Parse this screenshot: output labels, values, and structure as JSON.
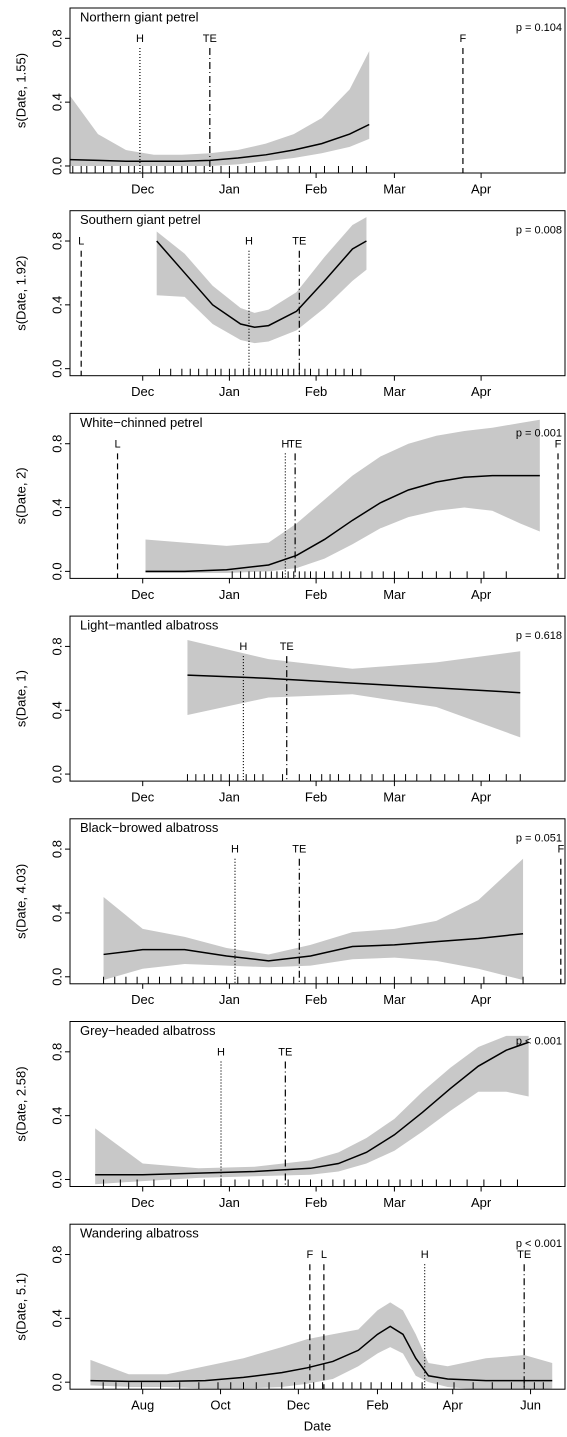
{
  "chart_data": [
    {
      "type": "line",
      "title": "Northern giant petrel",
      "ylabel": "s(Date, 1.55)",
      "annotation": "p = 0.104",
      "color": "#000000",
      "band_color": "#c8c8c8",
      "xlim": [
        4,
        181
      ],
      "ylim": [
        -0.044,
        0.99
      ],
      "xticks": [
        {
          "value": 30,
          "label": "Dec"
        },
        {
          "value": 61,
          "label": "Jan"
        },
        {
          "value": 92,
          "label": "Feb"
        },
        {
          "value": 120,
          "label": "Mar"
        },
        {
          "value": 151,
          "label": "Apr"
        }
      ],
      "yticks": [
        {
          "value": 0,
          "label": "0.0"
        },
        0.4,
        0.8
      ],
      "x": [
        4,
        14,
        24,
        34,
        44,
        54,
        64,
        74,
        84,
        94,
        104,
        111
      ],
      "values": [
        0.04,
        0.035,
        0.03,
        0.03,
        0.03,
        0.035,
        0.05,
        0.07,
        0.1,
        0.14,
        0.2,
        0.26
      ],
      "upper": [
        0.44,
        0.2,
        0.1,
        0.07,
        0.07,
        0.08,
        0.1,
        0.14,
        0.2,
        0.3,
        0.48,
        0.72
      ],
      "lower": [
        0,
        0,
        0,
        0,
        0,
        0,
        0.01,
        0.03,
        0.05,
        0.08,
        0.12,
        0.17
      ],
      "events": [
        {
          "label": "H",
          "x": 29,
          "style": "dotted"
        },
        {
          "label": "TE",
          "x": 54,
          "style": "dashdot"
        },
        {
          "label": "F",
          "x": 144.5,
          "style": "dashed"
        }
      ],
      "rug": [
        5,
        8,
        10,
        13,
        16,
        19,
        22,
        25,
        27,
        30,
        33,
        35,
        38,
        41,
        44,
        46,
        49,
        52,
        55,
        58,
        61,
        64,
        67,
        70,
        74,
        78,
        82,
        86,
        90,
        95,
        100,
        105,
        110
      ]
    },
    {
      "type": "line",
      "title": "Southern giant petrel",
      "ylabel": "s(Date, 1.92)",
      "annotation": "p = 0.008",
      "color": "#000000",
      "band_color": "#c8c8c8",
      "xlim": [
        4,
        181
      ],
      "ylim": [
        -0.044,
        0.99
      ],
      "xticks": [
        {
          "value": 30,
          "label": "Dec"
        },
        {
          "value": 61,
          "label": "Jan"
        },
        {
          "value": 92,
          "label": "Feb"
        },
        {
          "value": 120,
          "label": "Mar"
        },
        {
          "value": 151,
          "label": "Apr"
        }
      ],
      "yticks": [
        {
          "value": 0,
          "label": "0.0"
        },
        0.4,
        0.8
      ],
      "x": [
        35,
        45,
        55,
        65,
        70,
        75,
        85,
        95,
        105,
        110
      ],
      "values": [
        0.8,
        0.6,
        0.4,
        0.28,
        0.26,
        0.27,
        0.36,
        0.55,
        0.75,
        0.8
      ],
      "upper": [
        0.86,
        0.72,
        0.52,
        0.38,
        0.35,
        0.37,
        0.48,
        0.7,
        0.9,
        0.95
      ],
      "lower": [
        0.46,
        0.45,
        0.28,
        0.18,
        0.16,
        0.17,
        0.24,
        0.38,
        0.55,
        0.62
      ],
      "events": [
        {
          "label": "L",
          "x": 8,
          "style": "dashed"
        },
        {
          "label": "H",
          "x": 68,
          "style": "dotted"
        },
        {
          "label": "TE",
          "x": 86,
          "style": "dashdot"
        }
      ],
      "rug": [
        36,
        40,
        44,
        47,
        50,
        53,
        56,
        58,
        61,
        63,
        66,
        68,
        70,
        72,
        74,
        76,
        78,
        80,
        82,
        84,
        86,
        88,
        90,
        93,
        96,
        99,
        102,
        105,
        108
      ]
    },
    {
      "type": "line",
      "title": "White−chinned petrel",
      "ylabel": "s(Date, 2)",
      "annotation": "p = 0.001",
      "color": "#000000",
      "band_color": "#c8c8c8",
      "xlim": [
        4,
        181
      ],
      "ylim": [
        -0.044,
        0.99
      ],
      "xticks": [
        {
          "value": 30,
          "label": "Dec"
        },
        {
          "value": 61,
          "label": "Jan"
        },
        {
          "value": 92,
          "label": "Feb"
        },
        {
          "value": 120,
          "label": "Mar"
        },
        {
          "value": 151,
          "label": "Apr"
        }
      ],
      "yticks": [
        {
          "value": 0,
          "label": "0.0"
        },
        0.4,
        0.8
      ],
      "x": [
        31,
        45,
        60,
        75,
        85,
        95,
        105,
        115,
        125,
        135,
        145,
        155,
        165,
        172
      ],
      "values": [
        0,
        0,
        0.01,
        0.04,
        0.1,
        0.2,
        0.32,
        0.43,
        0.51,
        0.56,
        0.59,
        0.6,
        0.6,
        0.6
      ],
      "upper": [
        0.2,
        0.18,
        0.16,
        0.18,
        0.3,
        0.45,
        0.6,
        0.72,
        0.8,
        0.85,
        0.88,
        0.9,
        0.93,
        0.95
      ],
      "lower": [
        -0.01,
        -0.01,
        -0.01,
        0,
        0.02,
        0.08,
        0.17,
        0.27,
        0.34,
        0.38,
        0.4,
        0.38,
        0.3,
        0.25
      ],
      "events": [
        {
          "label": "L",
          "x": 21,
          "style": "dashed"
        },
        {
          "label": "H",
          "x": 81,
          "style": "dotted"
        },
        {
          "label": "TE",
          "x": 84.5,
          "style": "dashdot"
        },
        {
          "label": "F",
          "x": 178.5,
          "style": "dashed"
        }
      ],
      "rug": [
        62,
        65,
        68,
        70,
        72,
        74,
        76,
        78,
        80,
        82,
        84,
        86,
        88,
        90,
        92,
        95,
        98,
        101,
        104,
        108,
        112,
        116,
        120,
        125,
        130,
        135,
        140,
        146,
        152,
        160
      ]
    },
    {
      "type": "line",
      "title": "Light−mantled albatross",
      "ylabel": "s(Date, 1)",
      "annotation": "p = 0.618",
      "color": "#000000",
      "band_color": "#c8c8c8",
      "xlim": [
        4,
        181
      ],
      "ylim": [
        -0.044,
        0.99
      ],
      "xticks": [
        {
          "value": 30,
          "label": "Dec"
        },
        {
          "value": 61,
          "label": "Jan"
        },
        {
          "value": 92,
          "label": "Feb"
        },
        {
          "value": 120,
          "label": "Mar"
        },
        {
          "value": 151,
          "label": "Apr"
        }
      ],
      "yticks": [
        {
          "value": 0,
          "label": "0.0"
        },
        0.4,
        0.8
      ],
      "x": [
        46,
        75,
        105,
        135,
        165
      ],
      "values": [
        0.62,
        0.6,
        0.57,
        0.54,
        0.51
      ],
      "upper": [
        0.84,
        0.72,
        0.66,
        0.7,
        0.77
      ],
      "lower": [
        0.37,
        0.48,
        0.5,
        0.42,
        0.23
      ],
      "events": [
        {
          "label": "H",
          "x": 66,
          "style": "dotted"
        },
        {
          "label": "TE",
          "x": 81.5,
          "style": "dashdot"
        }
      ],
      "rug": [
        46,
        49,
        52,
        55,
        58,
        61,
        64,
        67,
        70,
        73,
        80,
        86,
        90,
        94,
        97,
        100,
        104,
        108,
        112,
        116,
        120,
        124,
        128,
        133,
        138,
        143,
        148,
        154,
        160,
        165
      ]
    },
    {
      "type": "line",
      "title": "Black−browed albatross",
      "ylabel": "s(Date, 4.03)",
      "annotation": "p = 0.051",
      "color": "#000000",
      "band_color": "#c8c8c8",
      "xlim": [
        4,
        181
      ],
      "ylim": [
        -0.044,
        0.99
      ],
      "xticks": [
        {
          "value": 30,
          "label": "Dec"
        },
        {
          "value": 61,
          "label": "Jan"
        },
        {
          "value": 92,
          "label": "Feb"
        },
        {
          "value": 120,
          "label": "Mar"
        },
        {
          "value": 151,
          "label": "Apr"
        }
      ],
      "yticks": [
        {
          "value": 0,
          "label": "0.0"
        },
        0.4,
        0.8
      ],
      "x": [
        16,
        30,
        45,
        60,
        75,
        90,
        105,
        120,
        135,
        150,
        166
      ],
      "values": [
        0.14,
        0.17,
        0.17,
        0.13,
        0.1,
        0.13,
        0.19,
        0.2,
        0.22,
        0.24,
        0.27
      ],
      "upper": [
        0.5,
        0.3,
        0.25,
        0.18,
        0.14,
        0.2,
        0.28,
        0.3,
        0.35,
        0.48,
        0.74
      ],
      "lower": [
        -0.02,
        0.05,
        0.08,
        0.07,
        0.06,
        0.07,
        0.11,
        0.12,
        0.1,
        0.05,
        -0.02
      ],
      "events": [
        {
          "label": "H",
          "x": 63,
          "style": "dotted"
        },
        {
          "label": "TE",
          "x": 86,
          "style": "dashdot"
        },
        {
          "label": "F",
          "x": 179.5,
          "style": "dashed"
        }
      ],
      "rug": [
        16,
        20,
        24,
        28,
        32,
        36,
        40,
        44,
        48,
        52,
        56,
        60,
        64,
        68,
        72,
        76,
        80,
        84,
        88,
        92,
        96,
        100,
        105,
        110,
        115,
        120,
        126,
        132,
        138,
        145,
        152,
        160,
        166
      ]
    },
    {
      "type": "line",
      "title": "Grey−headed albatross",
      "ylabel": "s(Date, 2.58)",
      "annotation": "p < 0.001",
      "color": "#000000",
      "band_color": "#c8c8c8",
      "xlim": [
        4,
        181
      ],
      "ylim": [
        -0.044,
        0.99
      ],
      "xticks": [
        {
          "value": 30,
          "label": "Dec"
        },
        {
          "value": 61,
          "label": "Jan"
        },
        {
          "value": 92,
          "label": "Feb"
        },
        {
          "value": 120,
          "label": "Mar"
        },
        {
          "value": 151,
          "label": "Apr"
        }
      ],
      "yticks": [
        {
          "value": 0,
          "label": "0.0"
        },
        0.4,
        0.8
      ],
      "x": [
        13,
        30,
        50,
        70,
        90,
        100,
        110,
        120,
        130,
        140,
        150,
        160,
        168
      ],
      "values": [
        0.03,
        0.03,
        0.04,
        0.05,
        0.07,
        0.1,
        0.17,
        0.28,
        0.42,
        0.57,
        0.71,
        0.81,
        0.86
      ],
      "upper": [
        0.32,
        0.1,
        0.07,
        0.08,
        0.12,
        0.17,
        0.26,
        0.38,
        0.55,
        0.7,
        0.83,
        0.9,
        0.9
      ],
      "lower": [
        -0.03,
        -0.01,
        0.01,
        0.02,
        0.03,
        0.05,
        0.1,
        0.18,
        0.3,
        0.43,
        0.55,
        0.55,
        0.52
      ],
      "events": [
        {
          "label": "H",
          "x": 58,
          "style": "dotted"
        },
        {
          "label": "TE",
          "x": 81,
          "style": "dashdot"
        }
      ],
      "rug": [
        16,
        22,
        28,
        34,
        40,
        46,
        52,
        58,
        63,
        68,
        73,
        78,
        82,
        86,
        90,
        94,
        98,
        102,
        106,
        110,
        114,
        118,
        122,
        126,
        130,
        135,
        140,
        146,
        152,
        158,
        164
      ]
    },
    {
      "type": "line",
      "title": "Wandering albatross",
      "ylabel": "s(Date, 5.1)",
      "annotation": "p < 0.001",
      "xlabel": "Date",
      "color": "#000000",
      "band_color": "#c8c8c8",
      "xlim": [
        -26,
        362
      ],
      "ylim": [
        -0.044,
        0.99
      ],
      "xticks": [
        {
          "value": 31,
          "label": "Aug"
        },
        {
          "value": 92,
          "label": "Oct"
        },
        {
          "value": 153,
          "label": "Dec"
        },
        {
          "value": 215,
          "label": "Feb"
        },
        {
          "value": 274,
          "label": "Apr"
        },
        {
          "value": 335,
          "label": "Jun"
        }
      ],
      "yticks": [
        {
          "value": 0,
          "label": "0.0"
        },
        0.4,
        0.8
      ],
      "x": [
        -10,
        20,
        50,
        80,
        110,
        140,
        160,
        180,
        200,
        215,
        225,
        235,
        245,
        255,
        270,
        300,
        330,
        352
      ],
      "values": [
        0.01,
        0.005,
        0.005,
        0.01,
        0.03,
        0.06,
        0.09,
        0.13,
        0.2,
        0.3,
        0.35,
        0.3,
        0.15,
        0.04,
        0.02,
        0.01,
        0.01,
        0.01
      ],
      "upper": [
        0.14,
        0.05,
        0.05,
        0.1,
        0.15,
        0.22,
        0.27,
        0.3,
        0.33,
        0.45,
        0.5,
        0.45,
        0.3,
        0.12,
        0.1,
        0.15,
        0.17,
        0.12
      ],
      "lower": [
        -0.02,
        -0.03,
        -0.03,
        -0.04,
        -0.04,
        -0.03,
        -0.01,
        0.02,
        0.1,
        0.18,
        0.22,
        0.18,
        0.04,
        0,
        -0.03,
        -0.05,
        -0.06,
        -0.04
      ],
      "events": [
        {
          "label": "F",
          "x": 162,
          "style": "dashed"
        },
        {
          "label": "L",
          "x": 173,
          "style": "dashed"
        },
        {
          "label": "H",
          "x": 252,
          "style": "dotted"
        },
        {
          "label": "TE",
          "x": 330,
          "style": "dashdot"
        }
      ],
      "rug": [
        0,
        10,
        20,
        30,
        45,
        60,
        75,
        90,
        100,
        110,
        120,
        130,
        140,
        150,
        158,
        165,
        172,
        180,
        188,
        195,
        202,
        210,
        218,
        226,
        234,
        242,
        250,
        262,
        275,
        290,
        305,
        320,
        330,
        338,
        345
      ]
    }
  ]
}
